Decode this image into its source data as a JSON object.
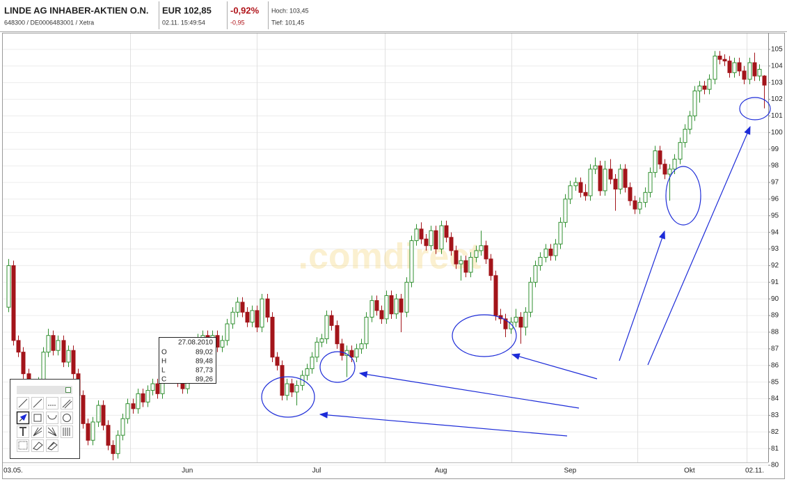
{
  "header": {
    "name": "LINDE AG INHABER-AKTIEN O.N.",
    "ids": "648300 / DE0006483001 / Xetra",
    "price": "EUR 102,85",
    "time": "02.11. 15:49:54",
    "change_pct": "-0,92%",
    "change": "-0,95",
    "high": "Hoch: 103,45",
    "low": "Tief: 101,45"
  },
  "tooltip": {
    "date": "27.08.2010",
    "rows": [
      [
        "O",
        "89,02"
      ],
      [
        "H",
        "89,48"
      ],
      [
        "L",
        "87,73"
      ],
      [
        "C",
        "89,26"
      ]
    ]
  },
  "watermark": ".comdirect",
  "chart_data": {
    "type": "candlestick",
    "up_color": "#2f8f2f",
    "down_color": "#a3141a",
    "grid": true,
    "ylim": [
      79.5,
      106
    ],
    "yticks": [
      80,
      81,
      82,
      83,
      84,
      85,
      86,
      87,
      88,
      89,
      90,
      91,
      92,
      93,
      94,
      95,
      96,
      97,
      98,
      99,
      100,
      101,
      102,
      103,
      104,
      105
    ],
    "categories": [
      "03.05.",
      null,
      null,
      null,
      null,
      null,
      null,
      null,
      null,
      null,
      null,
      null,
      null,
      null,
      null,
      null,
      null,
      null,
      null,
      null,
      null,
      null,
      null,
      null,
      null,
      null,
      null,
      null,
      null,
      null,
      null,
      null,
      null,
      null,
      null,
      null,
      "Jun",
      null,
      null,
      null,
      null,
      null,
      null,
      null,
      null,
      null,
      null,
      null,
      null,
      null,
      null,
      null,
      null,
      null,
      null,
      null,
      null,
      null,
      null,
      null,
      null,
      null,
      "Jul",
      null,
      null,
      null,
      null,
      null,
      null,
      null,
      null,
      null,
      null,
      null,
      null,
      null,
      null,
      null,
      null,
      null,
      null,
      null,
      null,
      null,
      null,
      null,
      null,
      "Aug",
      null,
      null,
      null,
      null,
      null,
      null,
      null,
      null,
      null,
      null,
      null,
      null,
      null,
      null,
      null,
      null,
      null,
      null,
      null,
      null,
      null,
      null,
      null,
      null,
      null,
      "Sep",
      null,
      null,
      null,
      null,
      null,
      null,
      null,
      null,
      null,
      null,
      null,
      null,
      null,
      null,
      null,
      null,
      null,
      null,
      null,
      null,
      null,
      null,
      null,
      "Okt",
      null,
      null,
      null,
      null,
      null,
      null,
      null,
      null,
      null,
      null,
      null,
      null,
      null,
      null,
      "02.11."
    ],
    "ohlc": [
      [
        89.5,
        92.4,
        89.2,
        92.0
      ],
      [
        92.0,
        92.3,
        87.2,
        87.5
      ],
      [
        87.5,
        87.8,
        86.5,
        86.8
      ],
      [
        86.8,
        87.1,
        85.2,
        85.5
      ],
      [
        85.5,
        85.8,
        84.2,
        84.5
      ],
      [
        84.5,
        84.8,
        83.7,
        84.0
      ],
      [
        84.0,
        85.3,
        83.7,
        85.0
      ],
      [
        85.0,
        87.1,
        84.7,
        86.8
      ],
      [
        86.8,
        88.2,
        86.5,
        87.8
      ],
      [
        87.8,
        88.1,
        86.6,
        86.9
      ],
      [
        86.9,
        87.8,
        86.6,
        87.5
      ],
      [
        87.5,
        87.8,
        85.9,
        86.2
      ],
      [
        86.2,
        87.2,
        85.9,
        86.9
      ],
      [
        86.9,
        87.2,
        85.2,
        85.5
      ],
      [
        85.5,
        85.8,
        83.9,
        84.2
      ],
      [
        84.2,
        84.5,
        82.2,
        82.5
      ],
      [
        82.5,
        82.8,
        81.2,
        81.5
      ],
      [
        81.5,
        82.9,
        81.2,
        82.6
      ],
      [
        82.6,
        83.9,
        82.3,
        83.6
      ],
      [
        83.6,
        83.9,
        82.1,
        82.4
      ],
      [
        82.4,
        82.7,
        80.9,
        81.2
      ],
      [
        81.2,
        81.5,
        80.3,
        80.7
      ],
      [
        80.7,
        82.1,
        80.4,
        81.8
      ],
      [
        81.8,
        83.1,
        81.5,
        82.8
      ],
      [
        82.8,
        84.0,
        82.5,
        83.7
      ],
      [
        83.7,
        84.0,
        83.1,
        83.4
      ],
      [
        83.4,
        84.6,
        83.1,
        84.3
      ],
      [
        84.3,
        84.6,
        83.5,
        83.8
      ],
      [
        83.8,
        84.8,
        83.5,
        84.5
      ],
      [
        84.5,
        85.2,
        84.2,
        84.9
      ],
      [
        84.9,
        85.2,
        84.0,
        84.3
      ],
      [
        84.3,
        85.9,
        84.0,
        85.6
      ],
      [
        85.6,
        86.7,
        85.3,
        86.4
      ],
      [
        86.4,
        86.7,
        85.9,
        86.2
      ],
      [
        86.2,
        86.5,
        84.7,
        85.0
      ],
      [
        85.0,
        85.3,
        84.3,
        84.6
      ],
      [
        84.6,
        85.6,
        84.3,
        85.3
      ],
      [
        85.3,
        86.5,
        85.0,
        86.2
      ],
      [
        86.2,
        87.9,
        85.9,
        87.6
      ],
      [
        87.6,
        88.1,
        87.3,
        87.8
      ],
      [
        87.8,
        88.1,
        87.1,
        87.4
      ],
      [
        87.4,
        88.1,
        87.1,
        87.8
      ],
      [
        87.8,
        88.1,
        86.8,
        87.1
      ],
      [
        87.1,
        87.8,
        86.8,
        87.5
      ],
      [
        87.5,
        88.8,
        87.2,
        88.5
      ],
      [
        88.5,
        89.5,
        88.2,
        89.2
      ],
      [
        89.2,
        90.1,
        88.9,
        89.8
      ],
      [
        89.8,
        90.1,
        88.9,
        89.2
      ],
      [
        89.2,
        89.5,
        88.3,
        88.6
      ],
      [
        88.6,
        89.6,
        88.3,
        89.3
      ],
      [
        89.3,
        89.6,
        88.0,
        88.3
      ],
      [
        88.3,
        90.3,
        88.0,
        90.0
      ],
      [
        90.0,
        90.3,
        88.6,
        88.9
      ],
      [
        88.9,
        89.2,
        86.2,
        86.5
      ],
      [
        86.5,
        86.8,
        85.7,
        86.0
      ],
      [
        86.0,
        86.3,
        83.9,
        84.2
      ],
      [
        84.2,
        85.2,
        83.9,
        84.9
      ],
      [
        84.9,
        85.2,
        84.1,
        84.4
      ],
      [
        84.4,
        85.1,
        83.6,
        84.8
      ],
      [
        84.8,
        85.7,
        84.5,
        85.4
      ],
      [
        85.4,
        86.1,
        85.1,
        85.8
      ],
      [
        85.8,
        86.8,
        85.5,
        86.5
      ],
      [
        86.5,
        87.7,
        86.2,
        87.4
      ],
      [
        87.4,
        87.9,
        87.1,
        87.6
      ],
      [
        87.6,
        89.3,
        87.3,
        89.0
      ],
      [
        89.0,
        89.3,
        88.1,
        88.4
      ],
      [
        88.4,
        88.7,
        87.0,
        87.3
      ],
      [
        87.3,
        87.6,
        86.3,
        86.6
      ],
      [
        86.6,
        87.2,
        85.3,
        86.9
      ],
      [
        86.9,
        87.2,
        86.2,
        86.5
      ],
      [
        86.5,
        87.3,
        86.2,
        87.0
      ],
      [
        87.0,
        87.6,
        86.7,
        87.3
      ],
      [
        87.3,
        89.2,
        87.0,
        88.9
      ],
      [
        88.9,
        90.2,
        88.6,
        89.9
      ],
      [
        89.9,
        90.2,
        89.0,
        89.3
      ],
      [
        89.3,
        89.6,
        88.5,
        88.8
      ],
      [
        88.8,
        90.5,
        88.5,
        90.2
      ],
      [
        90.2,
        90.5,
        88.8,
        89.1
      ],
      [
        89.1,
        90.3,
        88.8,
        90.0
      ],
      [
        90.0,
        90.3,
        88.0,
        89.2
      ],
      [
        89.2,
        91.3,
        88.9,
        91.0
      ],
      [
        91.0,
        93.8,
        90.7,
        93.5
      ],
      [
        93.5,
        94.5,
        93.2,
        94.2
      ],
      [
        94.2,
        94.6,
        93.3,
        93.6
      ],
      [
        93.6,
        93.9,
        92.9,
        93.2
      ],
      [
        93.2,
        94.4,
        92.9,
        94.1
      ],
      [
        94.1,
        94.4,
        92.7,
        93.0
      ],
      [
        93.0,
        94.7,
        92.7,
        94.4
      ],
      [
        94.4,
        94.7,
        93.4,
        93.7
      ],
      [
        93.7,
        94.0,
        92.6,
        92.9
      ],
      [
        92.9,
        93.2,
        91.8,
        92.1
      ],
      [
        92.1,
        92.6,
        91.1,
        92.3
      ],
      [
        92.3,
        92.6,
        91.3,
        91.6
      ],
      [
        91.6,
        92.8,
        91.3,
        92.5
      ],
      [
        92.5,
        93.2,
        92.2,
        92.9
      ],
      [
        92.9,
        94.1,
        92.6,
        93.2
      ],
      [
        93.2,
        93.5,
        92.1,
        92.4
      ],
      [
        92.4,
        92.7,
        91.1,
        91.4
      ],
      [
        91.4,
        91.7,
        88.7,
        89.0
      ],
      [
        89.0,
        89.4,
        88.5,
        88.8
      ],
      [
        88.8,
        89.1,
        87.7,
        88.2
      ],
      [
        88.2,
        88.9,
        87.9,
        88.6
      ],
      [
        88.6,
        89.4,
        88.3,
        88.9
      ],
      [
        88.9,
        89.2,
        87.3,
        88.3
      ],
      [
        88.3,
        89.5,
        87.8,
        89.2
      ],
      [
        89.2,
        91.3,
        88.9,
        91.0
      ],
      [
        91.0,
        92.3,
        90.7,
        92.0
      ],
      [
        92.0,
        92.8,
        91.7,
        92.5
      ],
      [
        92.5,
        93.3,
        92.2,
        93.0
      ],
      [
        93.0,
        93.3,
        92.3,
        92.6
      ],
      [
        92.6,
        93.6,
        92.3,
        93.3
      ],
      [
        93.3,
        94.9,
        93.0,
        94.6
      ],
      [
        94.6,
        96.3,
        94.3,
        96.0
      ],
      [
        96.0,
        97.1,
        95.7,
        96.8
      ],
      [
        96.8,
        97.3,
        96.5,
        97.0
      ],
      [
        97.0,
        97.3,
        96.1,
        96.4
      ],
      [
        96.4,
        96.9,
        95.9,
        96.2
      ],
      [
        96.2,
        98.1,
        95.9,
        97.8
      ],
      [
        97.8,
        98.5,
        97.5,
        98.0
      ],
      [
        98.0,
        98.3,
        96.2,
        96.5
      ],
      [
        96.5,
        98.3,
        96.2,
        97.8
      ],
      [
        97.8,
        98.4,
        96.9,
        97.2
      ],
      [
        97.2,
        97.5,
        95.3,
        96.6
      ],
      [
        96.6,
        98.1,
        96.3,
        97.8
      ],
      [
        97.8,
        98.1,
        96.4,
        96.7
      ],
      [
        96.7,
        97.0,
        95.6,
        95.9
      ],
      [
        95.9,
        96.2,
        95.1,
        95.4
      ],
      [
        95.4,
        96.1,
        95.1,
        95.8
      ],
      [
        95.8,
        96.7,
        95.5,
        96.4
      ],
      [
        96.4,
        97.9,
        96.1,
        97.6
      ],
      [
        97.6,
        99.2,
        97.3,
        98.9
      ],
      [
        98.9,
        99.2,
        97.8,
        98.1
      ],
      [
        98.1,
        98.4,
        97.2,
        97.5
      ],
      [
        97.5,
        98.1,
        95.9,
        97.8
      ],
      [
        97.8,
        98.7,
        97.5,
        98.4
      ],
      [
        98.4,
        99.7,
        98.1,
        99.4
      ],
      [
        99.4,
        100.5,
        99.1,
        100.2
      ],
      [
        100.2,
        101.3,
        99.9,
        101.0
      ],
      [
        101.0,
        102.8,
        100.7,
        102.5
      ],
      [
        102.5,
        103.1,
        101.8,
        102.8
      ],
      [
        102.8,
        103.1,
        102.3,
        102.6
      ],
      [
        102.6,
        103.5,
        102.3,
        103.2
      ],
      [
        103.2,
        104.9,
        102.9,
        104.6
      ],
      [
        104.6,
        104.9,
        104.1,
        104.4
      ],
      [
        104.4,
        104.7,
        104.0,
        104.3
      ],
      [
        104.3,
        104.6,
        103.3,
        103.6
      ],
      [
        103.6,
        104.5,
        103.3,
        104.2
      ],
      [
        104.2,
        104.5,
        103.4,
        103.7
      ],
      [
        103.7,
        104.0,
        102.9,
        103.2
      ],
      [
        103.2,
        104.5,
        102.9,
        104.2
      ],
      [
        104.2,
        104.8,
        103.1,
        103.4
      ],
      [
        103.4,
        104.1,
        103.1,
        103.8
      ],
      [
        103.4,
        103.45,
        101.45,
        102.85
      ]
    ]
  }
}
